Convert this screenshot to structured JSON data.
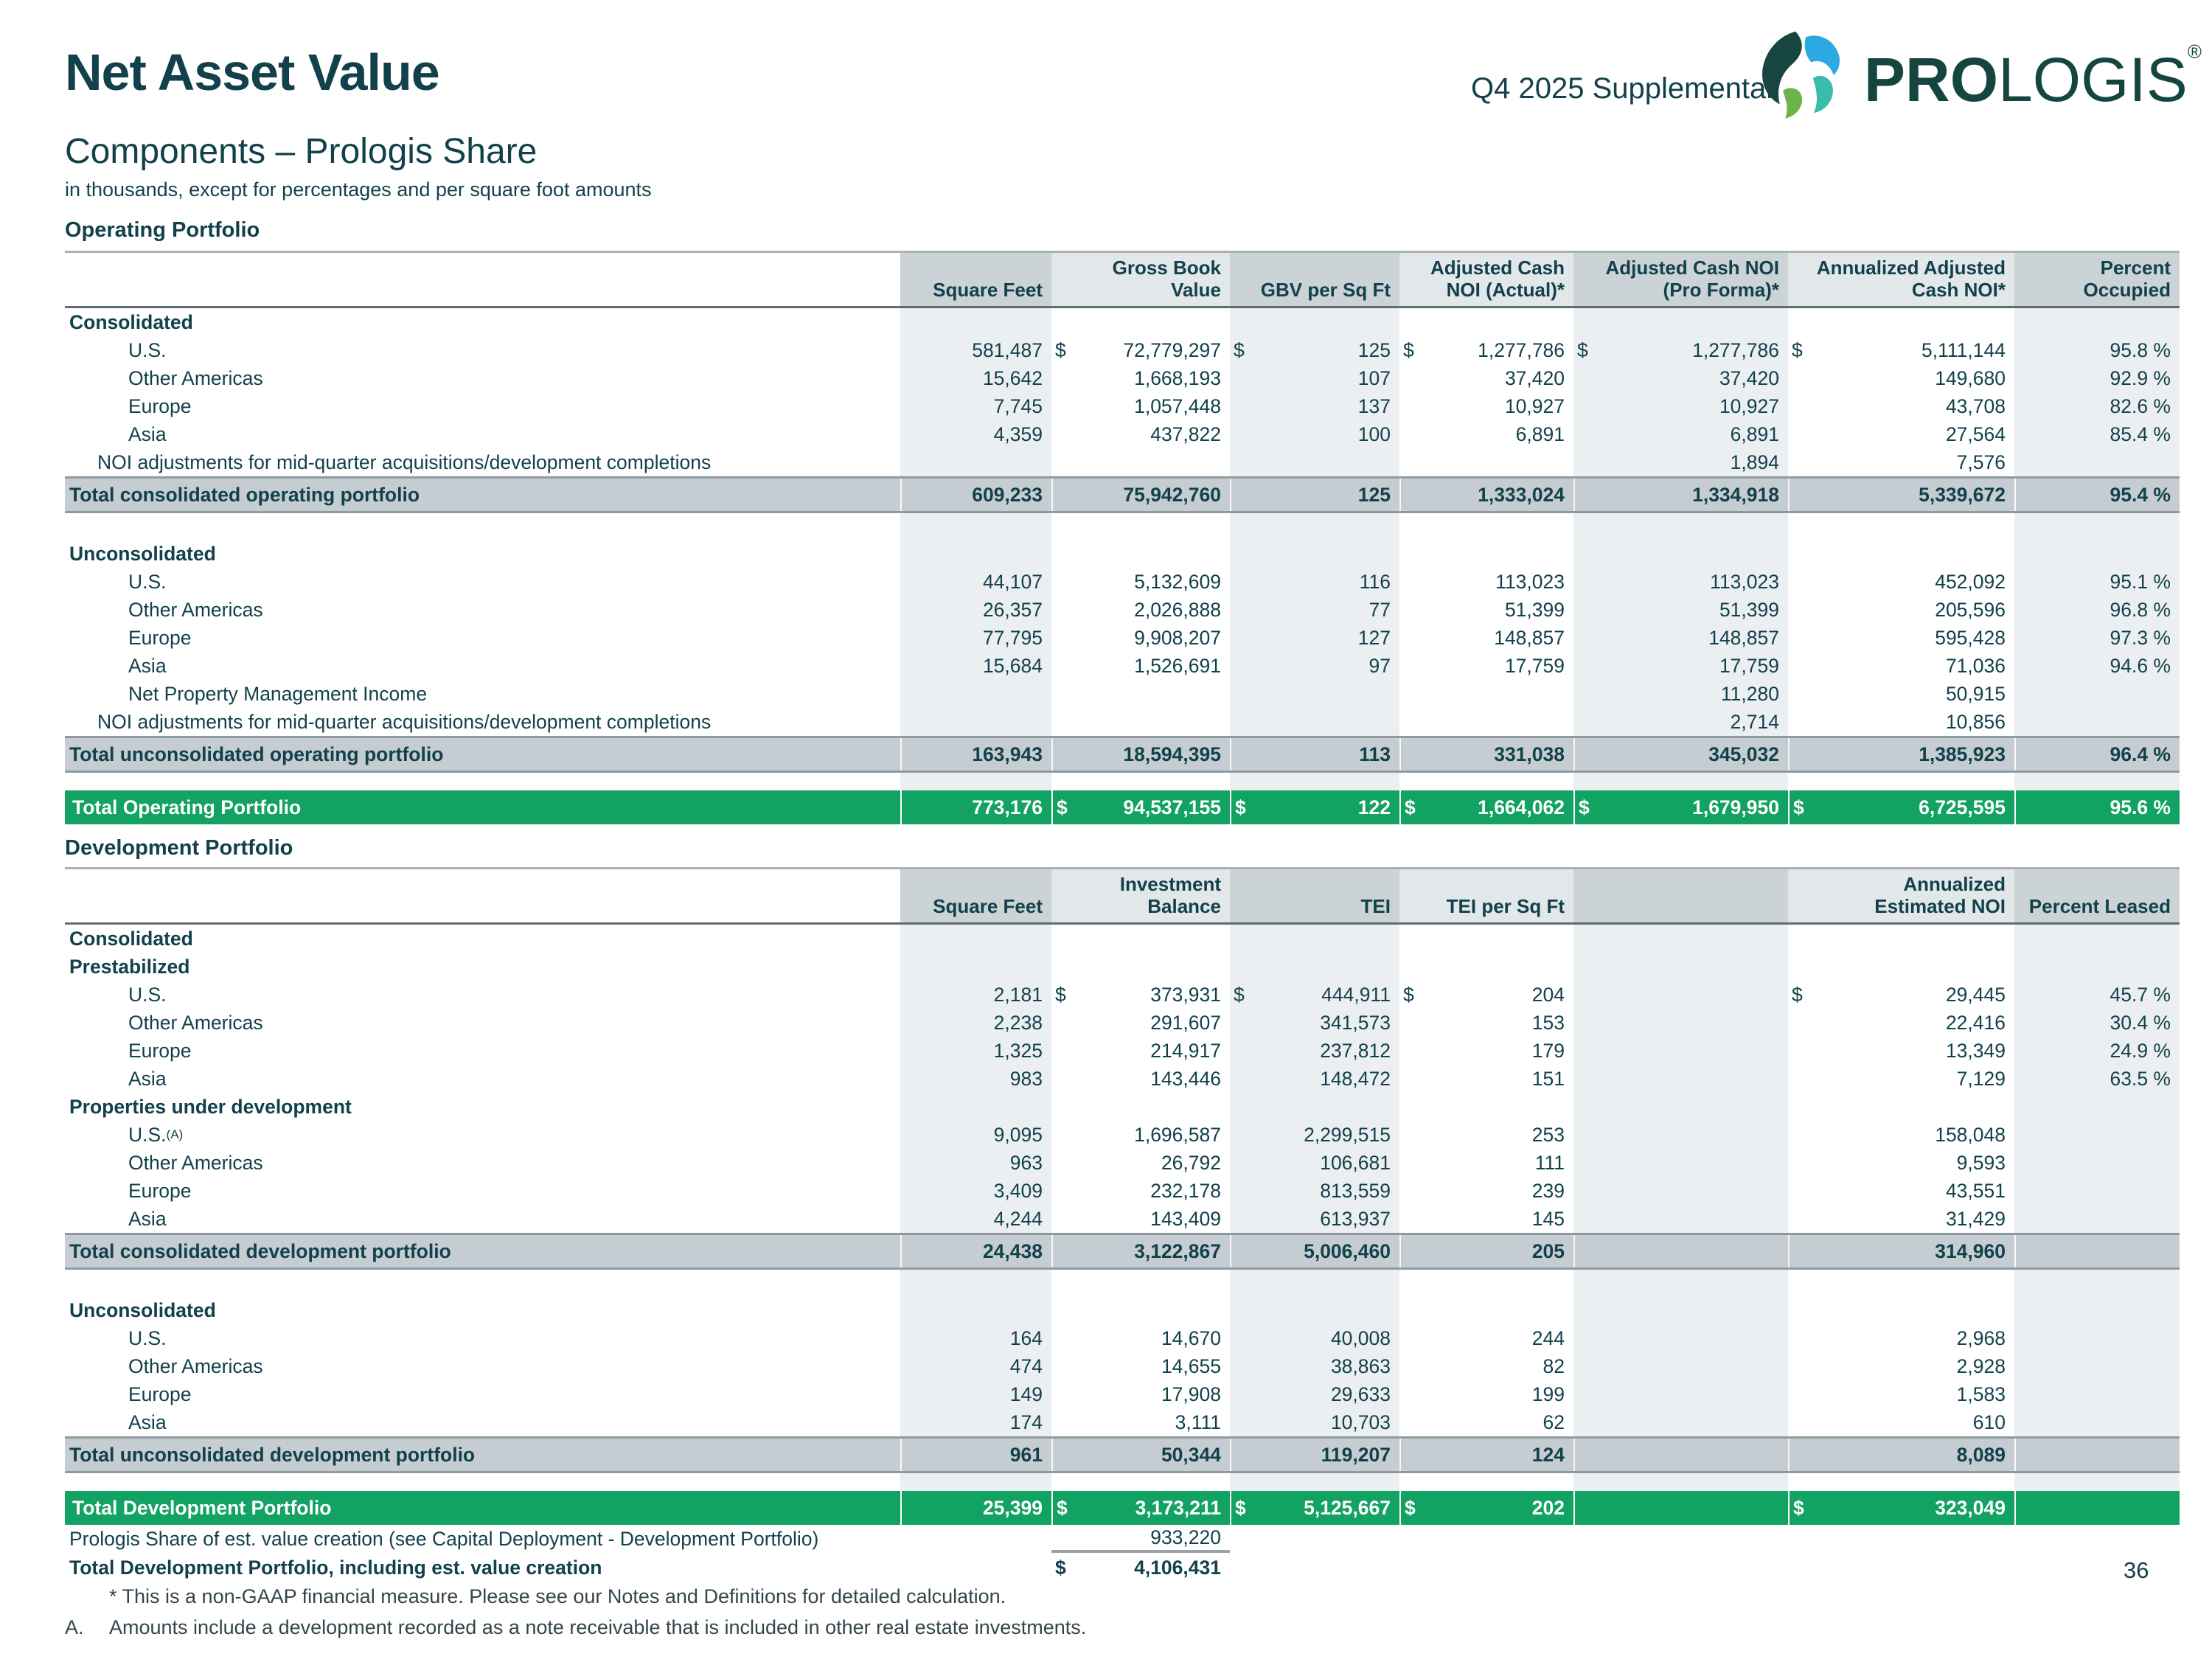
{
  "page": {
    "title": "Net Asset Value",
    "subtitle": "Components – Prologis Share",
    "units_note": "in thousands, except for percentages and per square foot amounts",
    "header_right": "Q4 2025 Supplemental",
    "brand_bold": "PRO",
    "brand_rest": "LOGIS",
    "brand_reg": "®",
    "page_number": "36"
  },
  "colors": {
    "accent_green": "#12A262",
    "text_teal": "#12414B",
    "total_row_gray": "#C5CDD2",
    "stripe_gray": "#ECEFF1",
    "logo_dark_teal": "#17453F",
    "logo_blue": "#2BA9E0",
    "logo_green": "#6CB449",
    "logo_turquoise": "#3ABCAD"
  },
  "footnotes": {
    "star": "* This is a non-GAAP financial measure. Please see our Notes and Definitions for detailed calculation.",
    "a_marker": "A.",
    "a_text": "Amounts include a development recorded as a note receivable that is included in other real estate investments."
  },
  "tables": {
    "operating": {
      "label": "Operating Portfolio",
      "headers": [
        {
          "lines": [
            "Square Feet"
          ]
        },
        {
          "lines": [
            "Gross Book",
            "Value"
          ]
        },
        {
          "lines": [
            "GBV per Sq Ft"
          ]
        },
        {
          "lines": [
            "Adjusted Cash",
            "NOI (Actual)*"
          ]
        },
        {
          "lines": [
            "Adjusted Cash NOI",
            "(Pro Forma)*"
          ]
        },
        {
          "lines": [
            "Annualized Adjusted",
            "Cash NOI*"
          ]
        },
        {
          "lines": [
            "Percent",
            "Occupied"
          ]
        }
      ],
      "rows": [
        {
          "type": "section",
          "label": "Consolidated"
        },
        {
          "type": "data",
          "label": "U.S.",
          "cells": [
            "581,487",
            "72,779,297",
            "125",
            "1,277,786",
            "1,277,786",
            "5,111,144",
            "95.8 %"
          ],
          "dollars": [
            false,
            true,
            true,
            true,
            true,
            true,
            false
          ]
        },
        {
          "type": "data",
          "label": "Other Americas",
          "cells": [
            "15,642",
            "1,668,193",
            "107",
            "37,420",
            "37,420",
            "149,680",
            "92.9 %"
          ]
        },
        {
          "type": "data",
          "label": "Europe",
          "cells": [
            "7,745",
            "1,057,448",
            "137",
            "10,927",
            "10,927",
            "43,708",
            "82.6 %"
          ]
        },
        {
          "type": "data",
          "label": "Asia",
          "cells": [
            "4,359",
            "437,822",
            "100",
            "6,891",
            "6,891",
            "27,564",
            "85.4 %"
          ]
        },
        {
          "type": "adj",
          "label": "NOI adjustments for mid-quarter acquisitions/development completions",
          "cells": [
            "",
            "",
            "",
            "",
            "1,894",
            "7,576",
            ""
          ]
        },
        {
          "type": "total",
          "label": "Total consolidated operating portfolio",
          "cells": [
            "609,233",
            "75,942,760",
            "125",
            "1,333,024",
            "1,334,918",
            "5,339,672",
            "95.4 %"
          ]
        },
        {
          "type": "spacer_lg"
        },
        {
          "type": "section",
          "label": "Unconsolidated"
        },
        {
          "type": "data",
          "label": "U.S.",
          "cells": [
            "44,107",
            "5,132,609",
            "116",
            "113,023",
            "113,023",
            "452,092",
            "95.1 %"
          ]
        },
        {
          "type": "data",
          "label": "Other Americas",
          "cells": [
            "26,357",
            "2,026,888",
            "77",
            "51,399",
            "51,399",
            "205,596",
            "96.8 %"
          ]
        },
        {
          "type": "data",
          "label": "Europe",
          "cells": [
            "77,795",
            "9,908,207",
            "127",
            "148,857",
            "148,857",
            "595,428",
            "97.3 %"
          ]
        },
        {
          "type": "data",
          "label": "Asia",
          "cells": [
            "15,684",
            "1,526,691",
            "97",
            "17,759",
            "17,759",
            "71,036",
            "94.6 %"
          ]
        },
        {
          "type": "data",
          "label": "Net Property Management Income",
          "cells": [
            "",
            "",
            "",
            "",
            "11,280",
            "50,915",
            ""
          ]
        },
        {
          "type": "adj",
          "label": "NOI adjustments for mid-quarter acquisitions/development completions",
          "cells": [
            "",
            "",
            "",
            "",
            "2,714",
            "10,856",
            ""
          ]
        },
        {
          "type": "total",
          "label": "Total unconsolidated operating portfolio",
          "cells": [
            "163,943",
            "18,594,395",
            "113",
            "331,038",
            "345,032",
            "1,385,923",
            "96.4 %"
          ]
        },
        {
          "type": "spacer_sm"
        },
        {
          "type": "grand",
          "label": "Total Operating Portfolio",
          "cells": [
            "773,176",
            "94,537,155",
            "122",
            "1,664,062",
            "1,679,950",
            "6,725,595",
            "95.6 %"
          ],
          "dollars": [
            false,
            true,
            true,
            true,
            true,
            true,
            false
          ]
        }
      ]
    },
    "development": {
      "label": "Development Portfolio",
      "headers": [
        {
          "lines": [
            "Square Feet"
          ]
        },
        {
          "lines": [
            "Investment",
            "Balance"
          ]
        },
        {
          "lines": [
            "TEI"
          ]
        },
        {
          "lines": [
            "TEI per Sq Ft"
          ]
        },
        {
          "lines": []
        },
        {
          "lines": [
            "Annualized",
            "Estimated NOI"
          ]
        },
        {
          "lines": [
            "Percent Leased"
          ]
        }
      ],
      "rows": [
        {
          "type": "section",
          "label": "Consolidated"
        },
        {
          "type": "section",
          "label": "Prestabilized"
        },
        {
          "type": "data",
          "label": "U.S.",
          "cells": [
            "2,181",
            "373,931",
            "444,911",
            "204",
            "",
            "29,445",
            "45.7 %"
          ],
          "dollars": [
            false,
            true,
            true,
            true,
            false,
            true,
            false
          ]
        },
        {
          "type": "data",
          "label": "Other Americas",
          "cells": [
            "2,238",
            "291,607",
            "341,573",
            "153",
            "",
            "22,416",
            "30.4 %"
          ]
        },
        {
          "type": "data",
          "label": "Europe",
          "cells": [
            "1,325",
            "214,917",
            "237,812",
            "179",
            "",
            "13,349",
            "24.9 %"
          ]
        },
        {
          "type": "data",
          "label": "Asia",
          "cells": [
            "983",
            "143,446",
            "148,472",
            "151",
            "",
            "7,129",
            "63.5 %"
          ]
        },
        {
          "type": "section",
          "label": "Properties under development"
        },
        {
          "type": "data",
          "label": "U.S.",
          "sup": "(A)",
          "cells": [
            "9,095",
            "1,696,587",
            "2,299,515",
            "253",
            "",
            "158,048",
            ""
          ]
        },
        {
          "type": "data",
          "label": "Other Americas",
          "cells": [
            "963",
            "26,792",
            "106,681",
            "111",
            "",
            "9,593",
            ""
          ]
        },
        {
          "type": "data",
          "label": "Europe",
          "cells": [
            "3,409",
            "232,178",
            "813,559",
            "239",
            "",
            "43,551",
            ""
          ]
        },
        {
          "type": "data",
          "label": "Asia",
          "cells": [
            "4,244",
            "143,409",
            "613,937",
            "145",
            "",
            "31,429",
            ""
          ]
        },
        {
          "type": "total",
          "label": "Total consolidated development portfolio",
          "cells": [
            "24,438",
            "3,122,867",
            "5,006,460",
            "205",
            "",
            "314,960",
            ""
          ]
        },
        {
          "type": "spacer_lg"
        },
        {
          "type": "section",
          "label": "Unconsolidated"
        },
        {
          "type": "data",
          "label": "U.S.",
          "cells": [
            "164",
            "14,670",
            "40,008",
            "244",
            "",
            "2,968",
            ""
          ]
        },
        {
          "type": "data",
          "label": "Other Americas",
          "cells": [
            "474",
            "14,655",
            "38,863",
            "82",
            "",
            "2,928",
            ""
          ]
        },
        {
          "type": "data",
          "label": "Europe",
          "cells": [
            "149",
            "17,908",
            "29,633",
            "199",
            "",
            "1,583",
            ""
          ]
        },
        {
          "type": "data",
          "label": "Asia",
          "cells": [
            "174",
            "3,111",
            "10,703",
            "62",
            "",
            "610",
            ""
          ]
        },
        {
          "type": "total",
          "label": "Total unconsolidated development portfolio",
          "cells": [
            "961",
            "50,344",
            "119,207",
            "124",
            "",
            "8,089",
            ""
          ]
        },
        {
          "type": "spacer_sm"
        },
        {
          "type": "grand",
          "label": "Total Development Portfolio",
          "cells": [
            "25,399",
            "3,173,211",
            "5,125,667",
            "202",
            "",
            "323,049",
            ""
          ],
          "dollars": [
            false,
            true,
            true,
            true,
            false,
            true,
            false
          ]
        },
        {
          "type": "note",
          "label": "Prologis Share of est. value creation (see Capital Deployment - Development Portfolio)",
          "cells": [
            "",
            "933,220",
            "",
            "",
            "",
            "",
            ""
          ]
        },
        {
          "type": "boldrow",
          "label": "Total Development Portfolio, including est. value creation",
          "cells": [
            "",
            "4,106,431",
            "",
            "",
            "",
            "",
            ""
          ],
          "dollars": [
            false,
            true,
            false,
            false,
            false,
            false,
            false
          ]
        }
      ]
    }
  }
}
